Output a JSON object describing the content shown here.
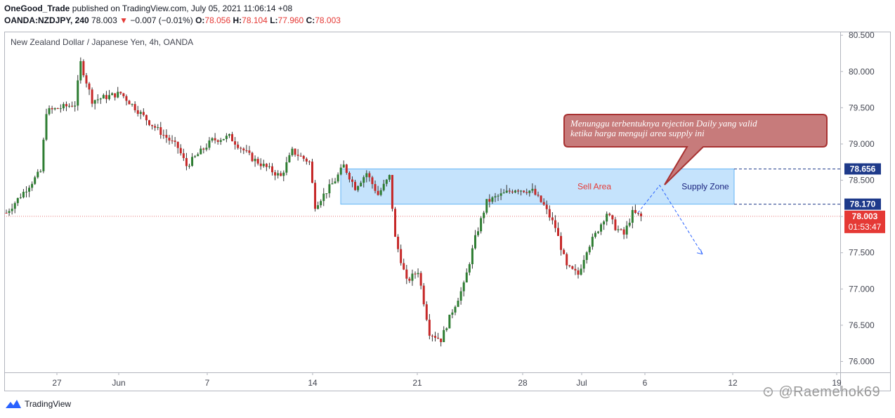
{
  "header": {
    "author": "OneGood_Trade",
    "published_text": "published on TradingView.com, July 05, 2021 11:06:14 +08",
    "symbol": "OANDA:NZDJPY, 240",
    "last": "78.003",
    "change": "−0.007 (−0.01%)",
    "open_label": "O:",
    "open": "78.056",
    "high_label": "H:",
    "high": "78.104",
    "low_label": "L:",
    "low": "77.960",
    "close_label": "C:",
    "close": "78.003"
  },
  "chart_title": "New Zealand Dollar / Japanese Yen, 4h, OANDA",
  "footer_logo": "TradingView",
  "watermark": "⊙ @Raemehok69",
  "colors": {
    "bull": "#26a69a",
    "bear": "#ef5350",
    "bull_body": "#3d8b40",
    "bear_body": "#c0392b",
    "zone_fill": "#bbdefb",
    "zone_stroke": "#64b5f6",
    "callout_fill": "#c77b7b",
    "callout_stroke": "#a83232",
    "price_tag": "#e53935",
    "level_tag": "#1e3a8a"
  },
  "chart_data": {
    "type": "candlestick",
    "symbol": "NZDJPY",
    "timeframe": "4h",
    "y_range": [
      75.85,
      80.55
    ],
    "y_ticks": [
      "80.500",
      "80.000",
      "79.500",
      "79.000",
      "78.500",
      "78.000",
      "77.500",
      "77.000",
      "76.500",
      "76.000"
    ],
    "x_ticks": [
      "27",
      "Jun",
      "7",
      "14",
      "21",
      "28",
      "Jul",
      "6",
      "12",
      "19"
    ],
    "anchors": [
      {
        "i": 0,
        "v": 78.05
      },
      {
        "i": 12,
        "v": 78.62
      },
      {
        "i": 14,
        "v": 79.45
      },
      {
        "i": 24,
        "v": 79.55
      },
      {
        "i": 26,
        "v": 80.12
      },
      {
        "i": 30,
        "v": 79.6
      },
      {
        "i": 40,
        "v": 79.7
      },
      {
        "i": 50,
        "v": 79.3
      },
      {
        "i": 60,
        "v": 78.95
      },
      {
        "i": 63,
        "v": 78.7
      },
      {
        "i": 72,
        "v": 79.05
      },
      {
        "i": 78,
        "v": 79.1
      },
      {
        "i": 86,
        "v": 78.8
      },
      {
        "i": 96,
        "v": 78.55
      },
      {
        "i": 100,
        "v": 78.9
      },
      {
        "i": 106,
        "v": 78.75
      },
      {
        "i": 108,
        "v": 78.15
      },
      {
        "i": 115,
        "v": 78.5
      },
      {
        "i": 118,
        "v": 78.7
      },
      {
        "i": 122,
        "v": 78.4
      },
      {
        "i": 126,
        "v": 78.6
      },
      {
        "i": 130,
        "v": 78.3
      },
      {
        "i": 134,
        "v": 78.55
      },
      {
        "i": 136,
        "v": 77.7
      },
      {
        "i": 140,
        "v": 77.1
      },
      {
        "i": 144,
        "v": 77.25
      },
      {
        "i": 148,
        "v": 76.4
      },
      {
        "i": 152,
        "v": 76.3
      },
      {
        "i": 156,
        "v": 76.7
      },
      {
        "i": 160,
        "v": 77.05
      },
      {
        "i": 164,
        "v": 77.7
      },
      {
        "i": 168,
        "v": 78.2
      },
      {
        "i": 172,
        "v": 78.28
      },
      {
        "i": 178,
        "v": 78.38
      },
      {
        "i": 184,
        "v": 78.35
      },
      {
        "i": 188,
        "v": 78.15
      },
      {
        "i": 192,
        "v": 77.85
      },
      {
        "i": 196,
        "v": 77.3
      },
      {
        "i": 200,
        "v": 77.2
      },
      {
        "i": 203,
        "v": 77.55
      },
      {
        "i": 206,
        "v": 77.75
      },
      {
        "i": 210,
        "v": 78.05
      },
      {
        "i": 213,
        "v": 77.85
      },
      {
        "i": 216,
        "v": 77.75
      },
      {
        "i": 219,
        "v": 78.05
      },
      {
        "i": 222,
        "v": 78.0
      }
    ],
    "supply_zone": {
      "low": 78.17,
      "high": 78.656,
      "label_left": "Sell Area",
      "label_right": "Supply Zone"
    },
    "levels": [
      {
        "label": "78.656",
        "price": 78.656
      },
      {
        "label": "78.170",
        "price": 78.17
      }
    ],
    "current_price": {
      "price": 78.003,
      "label": "78.003",
      "countdown": "01:53:47"
    },
    "projection": [
      {
        "date": "Jul 05 2021",
        "price": 78.05
      },
      {
        "date": "Jul 07 2021",
        "price": 78.43
      },
      {
        "date": "Jul 09 2021",
        "price": 77.48
      }
    ],
    "annotation": "Menunggu terbentuknya rejection Daily yang valid\nketika harga menguji area supply ini"
  }
}
